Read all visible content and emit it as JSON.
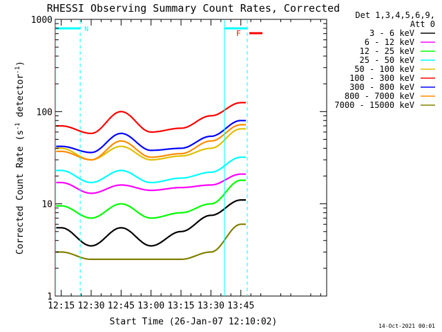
{
  "chart_data": {
    "type": "line",
    "title": "RHESSI Observing Summary Count Rates, Corrected",
    "xlabel": "Start Time (26-Jan-07 12:10:02)",
    "ylabel_main": "Corrected Count Rate (s",
    "ylabel_sup1": "-1",
    "ylabel_mid": " detector",
    "ylabel_sup2": "-1",
    "ylabel_end": ")",
    "x_range_minutes": [
      12.0,
      148.0
    ],
    "ylim": [
      1,
      1000
    ],
    "y_scale": "log",
    "x_ticks": [
      {
        "t": 15,
        "label": "12:15"
      },
      {
        "t": 30,
        "label": "12:30"
      },
      {
        "t": 45,
        "label": "12:45"
      },
      {
        "t": 60,
        "label": "13:00"
      },
      {
        "t": 75,
        "label": "13:15"
      },
      {
        "t": 90,
        "label": "13:30"
      },
      {
        "t": 105,
        "label": "13:45"
      }
    ],
    "y_ticks": [
      {
        "v": 1,
        "label": "1"
      },
      {
        "v": 10,
        "label": "10"
      },
      {
        "v": 100,
        "label": "100"
      },
      {
        "v": 1000,
        "label": "1000"
      }
    ],
    "legend": {
      "header1": "Det 1,3,4,5,6,9,",
      "header2": "Att 0",
      "placement": "right"
    },
    "series": [
      {
        "name": "3 - 6 keV",
        "color": "#000000",
        "values_at_ticks": [
          5.5,
          3.5,
          5.5,
          3.5,
          5.0,
          7.5,
          11
        ]
      },
      {
        "name": "6 - 12 keV",
        "color": "#ff00ff",
        "values_at_ticks": [
          17,
          13,
          16,
          14,
          15,
          16,
          21
        ]
      },
      {
        "name": "12 - 25 keV",
        "color": "#00ff00",
        "values_at_ticks": [
          9.5,
          7,
          10,
          7,
          8,
          10,
          18
        ]
      },
      {
        "name": "25 - 50 keV",
        "color": "#00ffff",
        "values_at_ticks": [
          23,
          17,
          23,
          17,
          19,
          22,
          32
        ]
      },
      {
        "name": "50 - 100 keV",
        "color": "#e0c000",
        "values_at_ticks": [
          40,
          30,
          42,
          30,
          33,
          40,
          65
        ]
      },
      {
        "name": "100 - 300 keV",
        "color": "#ff0000",
        "values_at_ticks": [
          70,
          58,
          100,
          60,
          66,
          90,
          125
        ]
      },
      {
        "name": "300 - 800 keV",
        "color": "#0000ff",
        "values_at_ticks": [
          42,
          36,
          58,
          38,
          40,
          54,
          80
        ]
      },
      {
        "name": "800 - 7000 keV",
        "color": "#ff8c00",
        "values_at_ticks": [
          37,
          30,
          48,
          32,
          35,
          48,
          72
        ]
      },
      {
        "name": "7000 - 15000 keV",
        "color": "#808000",
        "values_at_ticks": [
          3,
          2.5,
          2.5,
          2.5,
          2.5,
          3,
          6
        ]
      }
    ],
    "annotations": [
      {
        "text": "N",
        "color": "#00ffff",
        "meaning": "night interval"
      },
      {
        "text": "F",
        "color": "#ff0000",
        "meaning": "flare flag"
      }
    ]
  },
  "footer_date": "14-Oct-2021 00:01"
}
